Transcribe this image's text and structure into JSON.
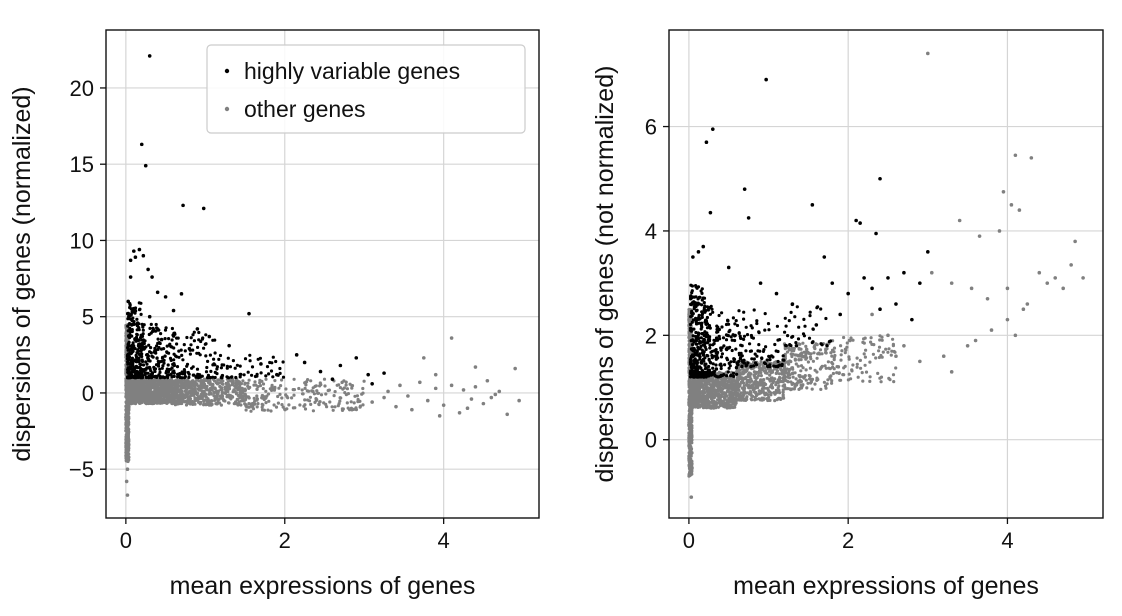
{
  "chart_data": [
    {
      "type": "scatter",
      "xlabel": "mean expressions of genes",
      "ylabel": "dispersions of genes (normalized)",
      "xlim": [
        -0.25,
        5.2
      ],
      "ylim": [
        -8.2,
        23.8
      ],
      "xticks": [
        0,
        2,
        4
      ],
      "yticks": [
        -5,
        0,
        5,
        10,
        15,
        20
      ],
      "grid": true,
      "legend": {
        "placement": "top-right",
        "entries": [
          "highly variable genes",
          "other genes"
        ]
      },
      "series": [
        {
          "name": "highly variable genes",
          "color": "#000000",
          "points": [
            [
              0.3,
              22.1
            ],
            [
              0.2,
              16.3
            ],
            [
              0.25,
              14.9
            ],
            [
              0.72,
              12.3
            ],
            [
              0.98,
              12.1
            ],
            [
              0.1,
              9.3
            ],
            [
              0.17,
              9.4
            ],
            [
              0.22,
              9.0
            ],
            [
              0.06,
              8.7
            ],
            [
              0.12,
              8.9
            ],
            [
              0.28,
              8.1
            ],
            [
              0.33,
              7.6
            ],
            [
              0.06,
              7.6
            ],
            [
              0.4,
              6.6
            ],
            [
              0.5,
              6.3
            ],
            [
              0.7,
              6.5
            ],
            [
              0.03,
              6.0
            ],
            [
              0.05,
              5.6
            ],
            [
              0.08,
              5.3
            ],
            [
              0.3,
              5.0
            ],
            [
              0.6,
              5.4
            ],
            [
              1.55,
              5.2
            ],
            [
              0.9,
              4.2
            ],
            [
              1.05,
              3.7
            ],
            [
              1.3,
              3.1
            ],
            [
              0.45,
              3.5
            ],
            [
              0.8,
              2.9
            ],
            [
              2.15,
              2.5
            ],
            [
              2.25,
              2.0
            ],
            [
              2.7,
              1.8
            ],
            [
              2.9,
              2.3
            ],
            [
              3.05,
              1.2
            ],
            [
              3.25,
              1.3
            ],
            [
              1.7,
              1.9
            ],
            [
              1.9,
              1.2
            ],
            [
              2.45,
              1.4
            ],
            [
              2.6,
              0.9
            ],
            [
              3.1,
              0.6
            ]
          ]
        },
        {
          "name": "other genes",
          "color": "#808080",
          "points": [
            [
              0.02,
              -6.7
            ],
            [
              0.01,
              -5.8
            ],
            [
              0.02,
              -5.0
            ],
            [
              0.03,
              -4.2
            ],
            [
              3.1,
              -0.6
            ],
            [
              3.3,
              0.1
            ],
            [
              3.4,
              -0.9
            ],
            [
              3.55,
              -0.2
            ],
            [
              3.6,
              -1.1
            ],
            [
              3.7,
              0.7
            ],
            [
              3.8,
              -0.5
            ],
            [
              3.9,
              0.3
            ],
            [
              4.0,
              -0.8
            ],
            [
              4.1,
              0.5
            ],
            [
              4.2,
              -1.3
            ],
            [
              4.25,
              0.2
            ],
            [
              4.35,
              -0.4
            ],
            [
              4.4,
              0.4
            ],
            [
              4.5,
              -0.7
            ],
            [
              4.55,
              0.8
            ],
            [
              4.6,
              -0.3
            ],
            [
              4.7,
              0.1
            ],
            [
              4.8,
              -1.4
            ],
            [
              4.9,
              1.6
            ],
            [
              4.95,
              -0.5
            ],
            [
              4.1,
              3.6
            ],
            [
              3.75,
              2.3
            ],
            [
              3.9,
              1.2
            ],
            [
              4.4,
              1.7
            ],
            [
              4.65,
              -0.1
            ],
            [
              3.25,
              -0.3
            ],
            [
              3.45,
              0.5
            ],
            [
              3.95,
              -1.5
            ],
            [
              4.3,
              -1.0
            ]
          ]
        }
      ],
      "dense": {
        "hvg": [
          {
            "x": [
              0.02,
              0.2
            ],
            "y": [
              1.0,
              6.0
            ],
            "n": 220
          },
          {
            "x": [
              0.2,
              0.6
            ],
            "y": [
              1.0,
              4.5
            ],
            "n": 170
          },
          {
            "x": [
              0.6,
              1.2
            ],
            "y": [
              1.0,
              4.0
            ],
            "n": 110
          },
          {
            "x": [
              1.2,
              2.0
            ],
            "y": [
              1.0,
              2.5
            ],
            "n": 50
          }
        ],
        "other": [
          {
            "x": [
              0.0,
              0.04
            ],
            "y": [
              -4.5,
              4.5
            ],
            "n": 500
          },
          {
            "x": [
              0.04,
              0.6
            ],
            "y": [
              -0.7,
              0.9
            ],
            "n": 900
          },
          {
            "x": [
              0.6,
              1.5
            ],
            "y": [
              -0.8,
              0.9
            ],
            "n": 500
          },
          {
            "x": [
              1.5,
              3.0
            ],
            "y": [
              -1.2,
              0.9
            ],
            "n": 220
          }
        ]
      }
    },
    {
      "type": "scatter",
      "xlabel": "mean expressions of genes",
      "ylabel": "dispersions of genes (not normalized)",
      "xlim": [
        -0.25,
        5.2
      ],
      "ylim": [
        -1.5,
        7.85
      ],
      "xticks": [
        0,
        2,
        4
      ],
      "yticks": [
        0,
        2,
        4,
        6
      ],
      "grid": true,
      "series": [
        {
          "name": "highly variable genes",
          "color": "#000000",
          "points": [
            [
              0.22,
              5.7
            ],
            [
              0.3,
              5.95
            ],
            [
              0.97,
              6.9
            ],
            [
              0.7,
              4.8
            ],
            [
              0.75,
              4.25
            ],
            [
              0.27,
              4.35
            ],
            [
              1.55,
              4.5
            ],
            [
              2.1,
              4.2
            ],
            [
              2.15,
              4.15
            ],
            [
              2.4,
              5.0
            ],
            [
              2.35,
              3.95
            ],
            [
              0.05,
              3.5
            ],
            [
              0.12,
              3.6
            ],
            [
              0.18,
              3.7
            ],
            [
              0.5,
              3.3
            ],
            [
              0.9,
              3.0
            ],
            [
              1.1,
              2.8
            ],
            [
              1.3,
              2.6
            ],
            [
              1.7,
              3.5
            ],
            [
              1.8,
              3.0
            ],
            [
              2.0,
              2.8
            ],
            [
              2.2,
              3.1
            ],
            [
              2.3,
              2.9
            ],
            [
              2.5,
              3.1
            ],
            [
              2.6,
              2.6
            ],
            [
              2.7,
              3.2
            ],
            [
              2.8,
              2.3
            ],
            [
              2.9,
              3.0
            ],
            [
              3.0,
              3.6
            ],
            [
              1.9,
              2.4
            ],
            [
              1.6,
              2.2
            ],
            [
              2.4,
              2.5
            ]
          ]
        },
        {
          "name": "other genes",
          "color": "#808080",
          "points": [
            [
              0.03,
              -1.1
            ],
            [
              0.02,
              -0.6
            ],
            [
              3.0,
              7.4
            ],
            [
              4.1,
              5.45
            ],
            [
              4.3,
              5.4
            ],
            [
              3.95,
              4.75
            ],
            [
              4.05,
              4.5
            ],
            [
              4.15,
              4.4
            ],
            [
              4.85,
              3.8
            ],
            [
              3.4,
              4.2
            ],
            [
              3.65,
              3.9
            ],
            [
              3.9,
              4.0
            ],
            [
              3.05,
              3.2
            ],
            [
              3.3,
              3.0
            ],
            [
              3.55,
              2.9
            ],
            [
              3.75,
              2.7
            ],
            [
              4.0,
              2.9
            ],
            [
              4.2,
              2.5
            ],
            [
              4.4,
              3.2
            ],
            [
              4.5,
              3.0
            ],
            [
              4.6,
              3.1
            ],
            [
              4.7,
              2.9
            ],
            [
              4.95,
              3.1
            ],
            [
              4.8,
              3.35
            ],
            [
              3.2,
              1.6
            ],
            [
              3.5,
              1.8
            ],
            [
              3.8,
              2.1
            ],
            [
              4.0,
              2.3
            ],
            [
              4.25,
              2.6
            ],
            [
              2.3,
              2.4
            ],
            [
              2.5,
              2.0
            ],
            [
              2.7,
              1.8
            ],
            [
              2.9,
              1.5
            ],
            [
              3.3,
              1.3
            ],
            [
              2.6,
              1.6
            ],
            [
              3.6,
              1.9
            ],
            [
              4.1,
              2.0
            ]
          ]
        }
      ],
      "dense": {
        "hvg": [
          {
            "x": [
              0.02,
              0.2
            ],
            "y": [
              1.2,
              3.0
            ],
            "n": 260
          },
          {
            "x": [
              0.2,
              0.6
            ],
            "y": [
              1.2,
              2.6
            ],
            "n": 180
          },
          {
            "x": [
              0.6,
              1.2
            ],
            "y": [
              1.4,
              2.5
            ],
            "n": 100
          },
          {
            "x": [
              1.2,
              1.8
            ],
            "y": [
              1.8,
              2.6
            ],
            "n": 40
          }
        ],
        "other": [
          {
            "x": [
              0.0,
              0.04
            ],
            "y": [
              -0.7,
              2.5
            ],
            "n": 450
          },
          {
            "x": [
              0.04,
              0.6
            ],
            "y": [
              0.6,
              1.3
            ],
            "n": 700
          },
          {
            "x": [
              0.6,
              1.2
            ],
            "y": [
              0.75,
              1.5
            ],
            "n": 400
          },
          {
            "x": [
              1.2,
              1.8
            ],
            "y": [
              0.95,
              1.85
            ],
            "n": 200
          },
          {
            "x": [
              1.8,
              2.6
            ],
            "y": [
              1.1,
              2.0
            ],
            "n": 100
          }
        ]
      }
    }
  ]
}
